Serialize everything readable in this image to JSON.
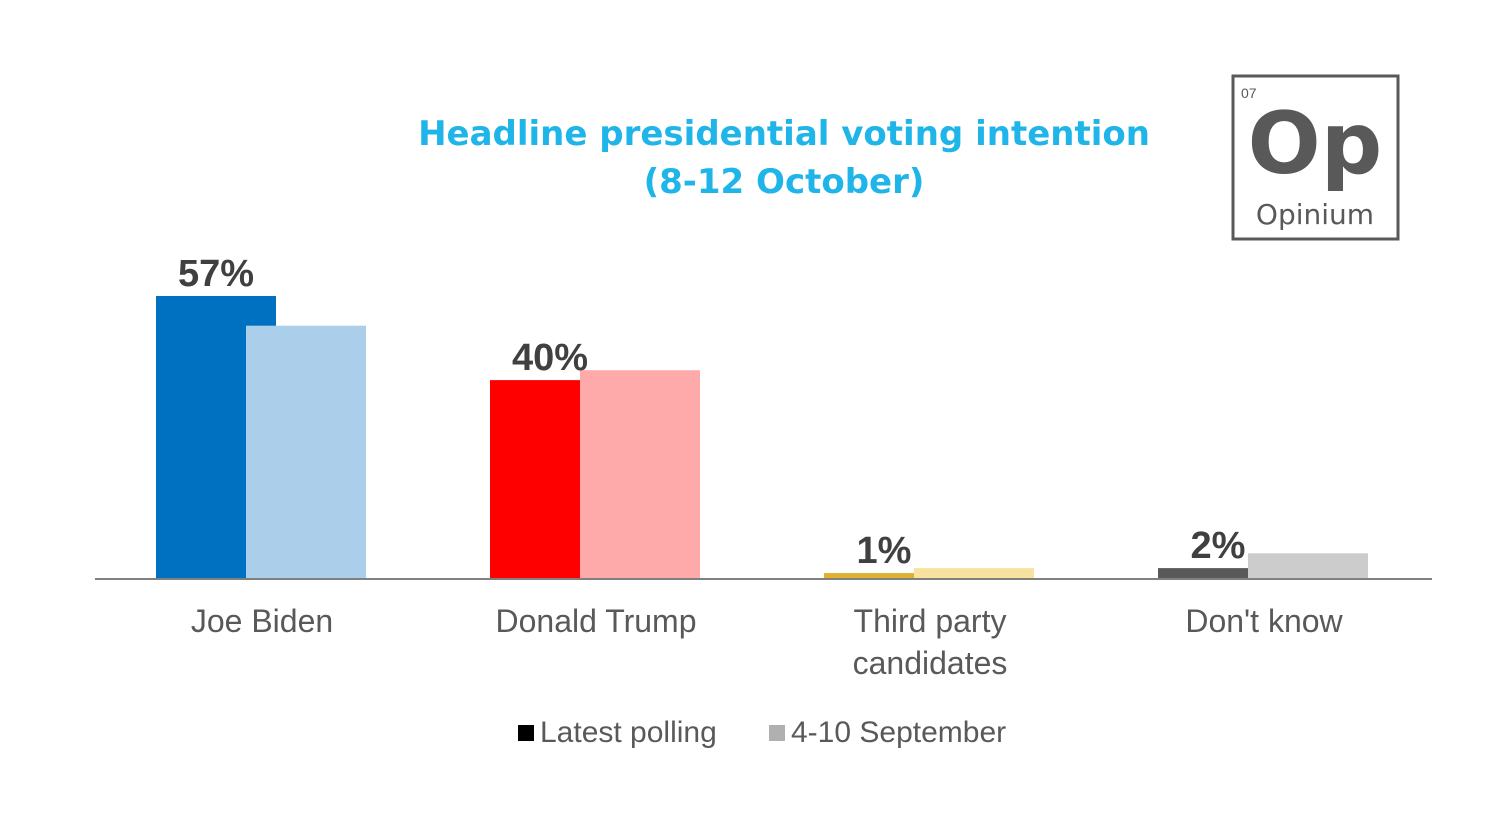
{
  "chart_data": {
    "type": "bar",
    "title": "Headline presidential voting intention",
    "subtitle": "(8-12 October)",
    "categories": [
      [
        "Joe Biden"
      ],
      [
        "Donald Trump"
      ],
      [
        "Third party",
        "candidates"
      ],
      [
        "Don't know"
      ]
    ],
    "series": [
      {
        "name": "Latest polling",
        "values": [
          57,
          40,
          1,
          2
        ],
        "colors": [
          "#0070c0",
          "#ff0000",
          "#e0b030",
          "#595959"
        ],
        "labels": [
          "57%",
          "40%",
          "1%",
          "2%"
        ]
      },
      {
        "name": "4-10 September",
        "values": [
          51,
          42,
          2,
          5
        ],
        "colors": [
          "#abcfea",
          "#ffaaaa",
          "#f7e2a0",
          "#cccccc"
        ]
      }
    ],
    "legend": {
      "position": "bottom",
      "swatch_colors": [
        "#000000",
        "#b0b0b0"
      ]
    },
    "ylim": [
      0,
      57
    ],
    "title_color": "#1fb5e8"
  },
  "logo": {
    "number": "07",
    "symbol": "Op",
    "name": "Opinium"
  }
}
